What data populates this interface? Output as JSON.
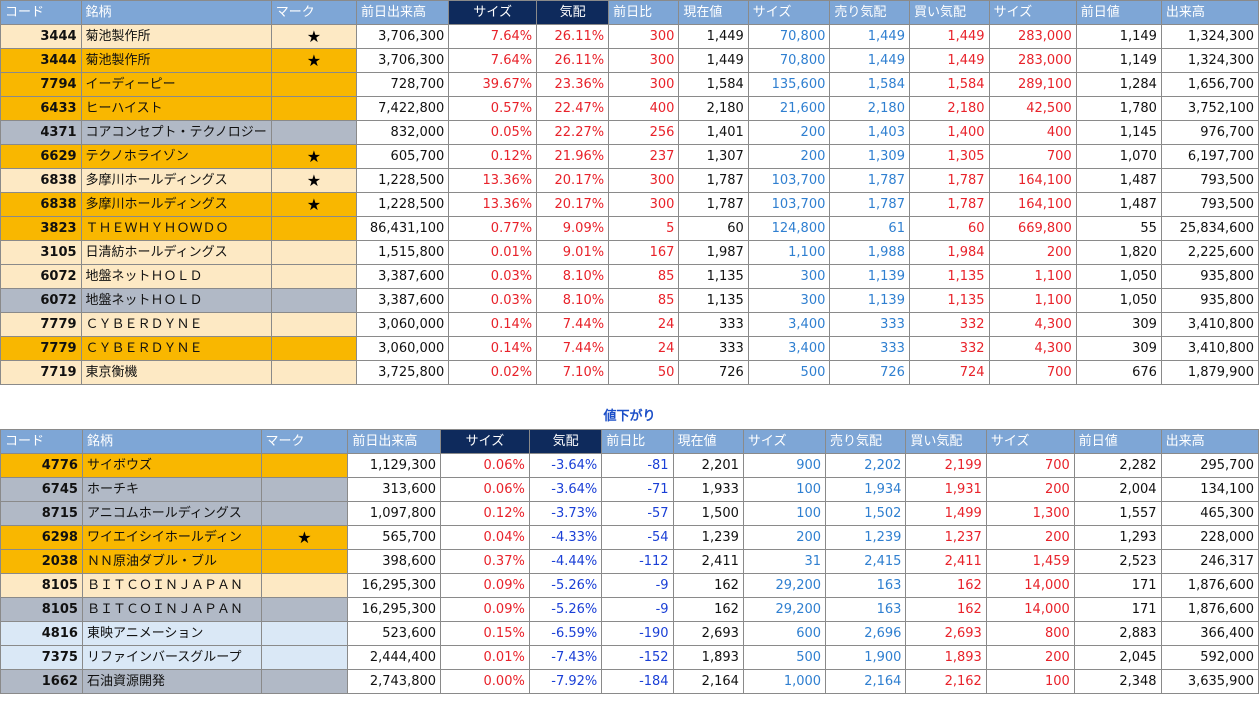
{
  "headers": [
    "コード",
    "銘柄",
    "マーク",
    "前日出来高",
    "サイズ",
    "気配",
    "前日比",
    "現在値",
    "サイズ",
    "売り気配",
    "買い気配",
    "サイズ",
    "前日値",
    "出来高"
  ],
  "colors": {
    "header_blue": "#7ea6d6",
    "header_navy": "#0e2a5c",
    "row_cream": "#fde9c4",
    "row_orange": "#f9b700",
    "row_gray": "#b1b9c6",
    "row_lightblue": "#dae8f6",
    "text_red": "#e8222a",
    "text_blue": "#2f7fd0",
    "text_neg_blue": "#1a3fd6"
  },
  "down_label": "値下がり",
  "up_rows": [
    {
      "bg": "cream",
      "code": "3444",
      "name": "菊池製作所",
      "mark": "★",
      "prev_volume": "3,706,300",
      "size_pct": "7.64%",
      "quote_pct": "26.11%",
      "change": "300",
      "price": "1,449",
      "size1": "70,800",
      "ask": "1,449",
      "bid": "1,449",
      "size2": "283,000",
      "prev_close": "1,149",
      "volume": "1,324,300"
    },
    {
      "bg": "orange",
      "code": "3444",
      "name": "菊池製作所",
      "mark": "★",
      "prev_volume": "3,706,300",
      "size_pct": "7.64%",
      "quote_pct": "26.11%",
      "change": "300",
      "price": "1,449",
      "size1": "70,800",
      "ask": "1,449",
      "bid": "1,449",
      "size2": "283,000",
      "prev_close": "1,149",
      "volume": "1,324,300"
    },
    {
      "bg": "orange",
      "code": "7794",
      "name": "イーディーピー",
      "mark": "",
      "prev_volume": "728,700",
      "size_pct": "39.67%",
      "quote_pct": "23.36%",
      "change": "300",
      "price": "1,584",
      "size1": "135,600",
      "ask": "1,584",
      "bid": "1,584",
      "size2": "289,100",
      "prev_close": "1,284",
      "volume": "1,656,700"
    },
    {
      "bg": "orange",
      "code": "6433",
      "name": "ヒーハイスト",
      "mark": "",
      "prev_volume": "7,422,800",
      "size_pct": "0.57%",
      "quote_pct": "22.47%",
      "change": "400",
      "price": "2,180",
      "size1": "21,600",
      "ask": "2,180",
      "bid": "2,180",
      "size2": "42,500",
      "prev_close": "1,780",
      "volume": "3,752,100"
    },
    {
      "bg": "gray",
      "code": "4371",
      "name": "コアコンセプト・テクノロジー",
      "mark": "",
      "prev_volume": "832,000",
      "size_pct": "0.05%",
      "quote_pct": "22.27%",
      "change": "256",
      "price": "1,401",
      "size1": "200",
      "ask": "1,403",
      "bid": "1,400",
      "size2": "400",
      "prev_close": "1,145",
      "volume": "976,700"
    },
    {
      "bg": "orange",
      "code": "6629",
      "name": "テクノホライゾン",
      "mark": "★",
      "prev_volume": "605,700",
      "size_pct": "0.12%",
      "quote_pct": "21.96%",
      "change": "237",
      "price": "1,307",
      "size1": "200",
      "ask": "1,309",
      "bid": "1,305",
      "size2": "700",
      "prev_close": "1,070",
      "volume": "6,197,700"
    },
    {
      "bg": "cream",
      "code": "6838",
      "name": "多摩川ホールディングス",
      "mark": "★",
      "prev_volume": "1,228,500",
      "size_pct": "13.36%",
      "quote_pct": "20.17%",
      "change": "300",
      "price": "1,787",
      "size1": "103,700",
      "ask": "1,787",
      "bid": "1,787",
      "size2": "164,100",
      "prev_close": "1,487",
      "volume": "793,500"
    },
    {
      "bg": "orange",
      "code": "6838",
      "name": "多摩川ホールディングス",
      "mark": "★",
      "prev_volume": "1,228,500",
      "size_pct": "13.36%",
      "quote_pct": "20.17%",
      "change": "300",
      "price": "1,787",
      "size1": "103,700",
      "ask": "1,787",
      "bid": "1,787",
      "size2": "164,100",
      "prev_close": "1,487",
      "volume": "793,500"
    },
    {
      "bg": "orange",
      "code": "3823",
      "name": "ＴＨＥＷＨＹＨＯＷＤＯ",
      "mark": "",
      "prev_volume": "86,431,100",
      "size_pct": "0.77%",
      "quote_pct": "9.09%",
      "change": "5",
      "price": "60",
      "size1": "124,800",
      "ask": "61",
      "bid": "60",
      "size2": "669,800",
      "prev_close": "55",
      "volume": "25,834,600"
    },
    {
      "bg": "cream",
      "code": "3105",
      "name": "日清紡ホールディングス",
      "mark": "",
      "prev_volume": "1,515,800",
      "size_pct": "0.01%",
      "quote_pct": "9.01%",
      "change": "167",
      "price": "1,987",
      "size1": "1,100",
      "ask": "1,988",
      "bid": "1,984",
      "size2": "200",
      "prev_close": "1,820",
      "volume": "2,225,600"
    },
    {
      "bg": "cream",
      "code": "6072",
      "name": "地盤ネットＨＯＬＤ",
      "mark": "",
      "prev_volume": "3,387,600",
      "size_pct": "0.03%",
      "quote_pct": "8.10%",
      "change": "85",
      "price": "1,135",
      "size1": "300",
      "ask": "1,139",
      "bid": "1,135",
      "size2": "1,100",
      "prev_close": "1,050",
      "volume": "935,800"
    },
    {
      "bg": "gray",
      "code": "6072",
      "name": "地盤ネットＨＯＬＤ",
      "mark": "",
      "prev_volume": "3,387,600",
      "size_pct": "0.03%",
      "quote_pct": "8.10%",
      "change": "85",
      "price": "1,135",
      "size1": "300",
      "ask": "1,139",
      "bid": "1,135",
      "size2": "1,100",
      "prev_close": "1,050",
      "volume": "935,800"
    },
    {
      "bg": "cream",
      "code": "7779",
      "name": "ＣＹＢＥＲＤＹＮＥ",
      "mark": "",
      "prev_volume": "3,060,000",
      "size_pct": "0.14%",
      "quote_pct": "7.44%",
      "change": "24",
      "price": "333",
      "size1": "3,400",
      "ask": "333",
      "bid": "332",
      "size2": "4,300",
      "prev_close": "309",
      "volume": "3,410,800"
    },
    {
      "bg": "orange",
      "code": "7779",
      "name": "ＣＹＢＥＲＤＹＮＥ",
      "mark": "",
      "prev_volume": "3,060,000",
      "size_pct": "0.14%",
      "quote_pct": "7.44%",
      "change": "24",
      "price": "333",
      "size1": "3,400",
      "ask": "333",
      "bid": "332",
      "size2": "4,300",
      "prev_close": "309",
      "volume": "3,410,800"
    },
    {
      "bg": "cream",
      "code": "7719",
      "name": "東京衡機",
      "mark": "",
      "prev_volume": "3,725,800",
      "size_pct": "0.02%",
      "quote_pct": "7.10%",
      "change": "50",
      "price": "726",
      "size1": "500",
      "ask": "726",
      "bid": "724",
      "size2": "700",
      "prev_close": "676",
      "volume": "1,879,900"
    }
  ],
  "down_rows": [
    {
      "bg": "orange",
      "code": "4776",
      "name": "サイボウズ",
      "mark": "",
      "prev_volume": "1,129,300",
      "size_pct": "0.06%",
      "quote_pct": "-3.64%",
      "change": "-81",
      "price": "2,201",
      "size1": "900",
      "ask": "2,202",
      "bid": "2,199",
      "size2": "700",
      "prev_close": "2,282",
      "volume": "295,700"
    },
    {
      "bg": "gray",
      "code": "6745",
      "name": "ホーチキ",
      "mark": "",
      "prev_volume": "313,600",
      "size_pct": "0.06%",
      "quote_pct": "-3.64%",
      "change": "-71",
      "price": "1,933",
      "size1": "100",
      "ask": "1,934",
      "bid": "1,931",
      "size2": "200",
      "prev_close": "2,004",
      "volume": "134,100"
    },
    {
      "bg": "gray",
      "code": "8715",
      "name": "アニコムホールディングス",
      "mark": "",
      "prev_volume": "1,097,800",
      "size_pct": "0.12%",
      "quote_pct": "-3.73%",
      "change": "-57",
      "price": "1,500",
      "size1": "100",
      "ask": "1,502",
      "bid": "1,499",
      "size2": "1,300",
      "prev_close": "1,557",
      "volume": "465,300"
    },
    {
      "bg": "orange",
      "code": "6298",
      "name": "ワイエイシイホールディン",
      "mark": "★",
      "prev_volume": "565,700",
      "size_pct": "0.04%",
      "quote_pct": "-4.33%",
      "change": "-54",
      "price": "1,239",
      "size1": "200",
      "ask": "1,239",
      "bid": "1,237",
      "size2": "200",
      "prev_close": "1,293",
      "volume": "228,000"
    },
    {
      "bg": "orange",
      "code": "2038",
      "name": "ＮＮ原油ダブル・ブル",
      "mark": "",
      "prev_volume": "398,600",
      "size_pct": "0.37%",
      "quote_pct": "-4.44%",
      "change": "-112",
      "price": "2,411",
      "size1": "31",
      "ask": "2,415",
      "bid": "2,411",
      "size2": "1,459",
      "prev_close": "2,523",
      "volume": "246,317"
    },
    {
      "bg": "cream",
      "code": "8105",
      "name": "ＢＩＴＣＯＩＮＪＡＰＡＮ",
      "mark": "",
      "prev_volume": "16,295,300",
      "size_pct": "0.09%",
      "quote_pct": "-5.26%",
      "change": "-9",
      "price": "162",
      "size1": "29,200",
      "ask": "163",
      "bid": "162",
      "size2": "14,000",
      "prev_close": "171",
      "volume": "1,876,600"
    },
    {
      "bg": "gray",
      "code": "8105",
      "name": "ＢＩＴＣＯＩＮＪＡＰＡＮ",
      "mark": "",
      "prev_volume": "16,295,300",
      "size_pct": "0.09%",
      "quote_pct": "-5.26%",
      "change": "-9",
      "price": "162",
      "size1": "29,200",
      "ask": "163",
      "bid": "162",
      "size2": "14,000",
      "prev_close": "171",
      "volume": "1,876,600"
    },
    {
      "bg": "lightblue",
      "code": "4816",
      "name": "東映アニメーション",
      "mark": "",
      "prev_volume": "523,600",
      "size_pct": "0.15%",
      "quote_pct": "-6.59%",
      "change": "-190",
      "price": "2,693",
      "size1": "600",
      "ask": "2,696",
      "bid": "2,693",
      "size2": "800",
      "prev_close": "2,883",
      "volume": "366,400"
    },
    {
      "bg": "lightblue",
      "code": "7375",
      "name": "リファインバースグループ",
      "mark": "",
      "prev_volume": "2,444,400",
      "size_pct": "0.01%",
      "quote_pct": "-7.43%",
      "change": "-152",
      "price": "1,893",
      "size1": "500",
      "ask": "1,900",
      "bid": "1,893",
      "size2": "200",
      "prev_close": "2,045",
      "volume": "592,000"
    },
    {
      "bg": "gray",
      "code": "1662",
      "name": "石油資源開発",
      "mark": "",
      "prev_volume": "2,743,800",
      "size_pct": "0.00%",
      "quote_pct": "-7.92%",
      "change": "-184",
      "price": "2,164",
      "size1": "1,000",
      "ask": "2,164",
      "bid": "2,162",
      "size2": "100",
      "prev_close": "2,348",
      "volume": "3,635,900"
    }
  ]
}
